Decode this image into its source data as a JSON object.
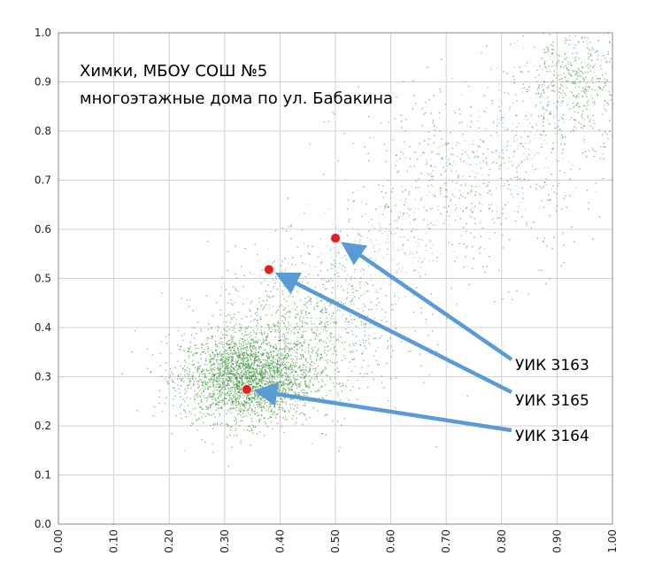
{
  "chart_data": {
    "type": "scatter",
    "xlim": [
      0,
      1
    ],
    "ylim": [
      0,
      1
    ],
    "x_ticks": [
      "0.00",
      "0.10",
      "0.20",
      "0.30",
      "0.40",
      "0.50",
      "0.60",
      "0.70",
      "0.80",
      "0.90",
      "1.00"
    ],
    "y_ticks": [
      "0.0",
      "0.1",
      "0.2",
      "0.3",
      "0.4",
      "0.5",
      "0.6",
      "0.7",
      "0.8",
      "0.9",
      "1.0"
    ],
    "grid": true,
    "annotation_lines": [
      "Химки, МБОУ СОШ №5",
      "многоэтажные дома по ул. Бабакина"
    ],
    "highlighted_points": [
      {
        "label": "УИК 3163",
        "x": 0.5,
        "y": 0.582
      },
      {
        "label": "УИК 3165",
        "x": 0.38,
        "y": 0.518
      },
      {
        "label": "УИК 3164",
        "x": 0.34,
        "y": 0.274
      }
    ],
    "density_clusters": [
      {
        "x": 0.34,
        "y": 0.3,
        "spread_x": 0.06,
        "spread_y": 0.045,
        "weight": 0.6
      },
      {
        "x": 0.45,
        "y": 0.4,
        "spread_x": 0.09,
        "spread_y": 0.08,
        "weight": 0.18
      },
      {
        "x": 0.75,
        "y": 0.7,
        "spread_x": 0.12,
        "spread_y": 0.1,
        "weight": 0.12
      },
      {
        "x": 0.93,
        "y": 0.9,
        "spread_x": 0.05,
        "spread_y": 0.06,
        "weight": 0.1
      }
    ],
    "colors": {
      "points": "#2e8b2e",
      "highlight": "#e02020",
      "arrow": "#5b9bd5",
      "grid": "#d0d0d0"
    }
  }
}
